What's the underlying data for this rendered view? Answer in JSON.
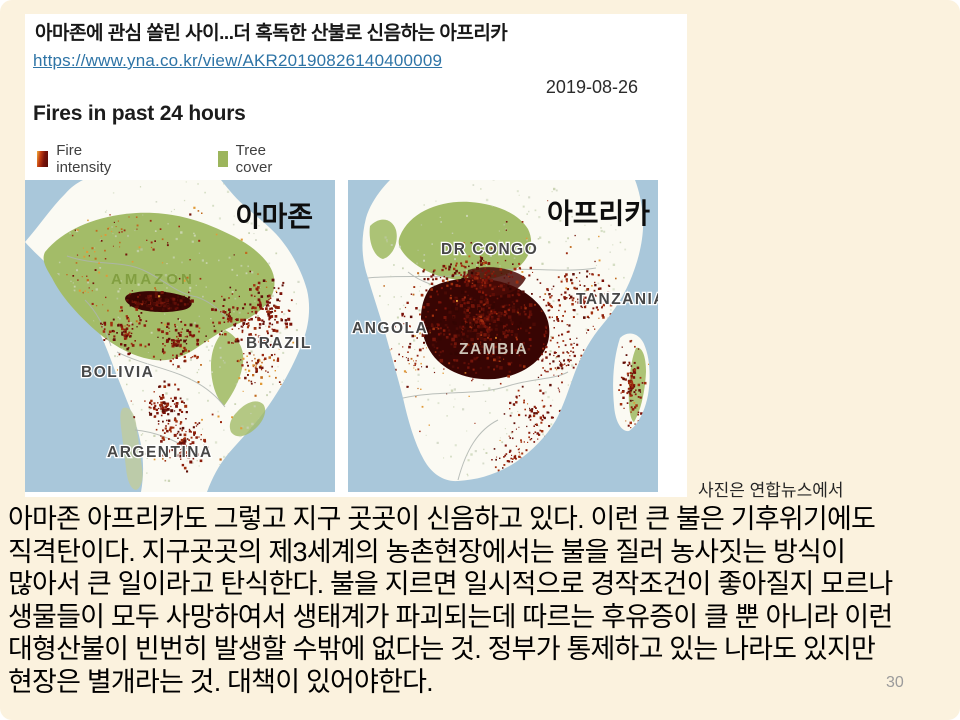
{
  "slide": {
    "background_color": "#FBF2DE",
    "page_number": "30"
  },
  "article": {
    "title": "아마존에 관심 쏠린 사이...더 혹독한 산불로 신음하는 아프리카",
    "url": "https://www.yna.co.kr/view/AKR20190826140400009",
    "date": "2019-08-26",
    "figure_heading": "Fires in past 24 hours",
    "legend": {
      "fire_label": "Fire intensity",
      "fire_color_scale": [
        "#F0B13F",
        "#C23B0F",
        "#560C07"
      ],
      "tree_label": "Tree cover",
      "tree_color": "#9CB55C"
    }
  },
  "maps": {
    "ocean_color": "#A9C7DA",
    "land_color": "#FBFAF3",
    "forest_color": "#A3BC68",
    "fire_dot_color": "#4A0A06",
    "south_america": {
      "korean_title": "아마존",
      "amazon_label": "AMAZON",
      "bolivia_label": "BOLIVIA",
      "brazil_label": "BRAZIL",
      "argentina_label": "ARGENTINA"
    },
    "africa": {
      "korean_title": "아프리카",
      "dr_congo_label": "DR CONGO",
      "angola_label": "ANGOLA",
      "tanzania_label": "TANZANIA",
      "zambia_label": "ZAMBIA"
    }
  },
  "photo_credit": "사진은 연합뉴스에서",
  "commentary": {
    "lines": [
      "아마존 아프리카도 그렇고 지구 곳곳이 신음하고 있다. 이런 큰 불은 기후위기에도",
      "직격탄이다. 지구곳곳의 제3세계의 농촌현장에서는 불을 질러 농사짓는 방식이",
      "많아서 큰 일이라고 탄식한다. 불을 지르면 일시적으로 경작조건이 좋아질지 모르나",
      "생물들이 모두 사망하여서 생태계가 파괴되는데 따르는 후유증이 클 뿐 아니라 이런",
      "대형산불이 빈번히 발생할 수밖에 없다는 것. 정부가 통제하고 있는 나라도 있지만",
      "현장은 별개라는 것. 대책이 있어야한다."
    ]
  }
}
